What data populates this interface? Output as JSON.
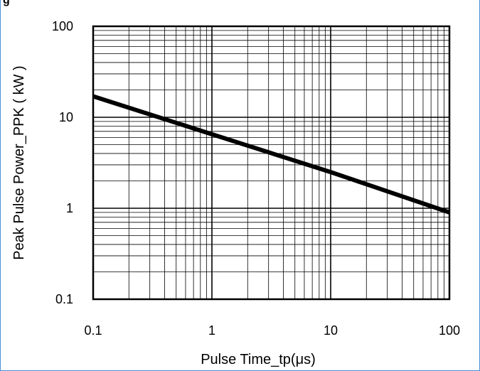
{
  "figure_header": "g",
  "chart_data": {
    "type": "line",
    "xscale": "log",
    "yscale": "log",
    "xlim": [
      0.1,
      100
    ],
    "ylim": [
      0.1,
      100
    ],
    "xticks": [
      "0.1",
      "1",
      "10",
      "100"
    ],
    "yticks": [
      "0.1",
      "1",
      "10",
      "100"
    ],
    "xlabel": "Pulse Time_tp(μs)",
    "ylabel": "Peak Pulse Power_PPK ( kW )",
    "grid": true,
    "series": [
      {
        "x": [
          0.1,
          1,
          10,
          100
        ],
        "y": [
          17,
          6.5,
          2.5,
          0.9
        ],
        "color": "#000000"
      }
    ]
  }
}
